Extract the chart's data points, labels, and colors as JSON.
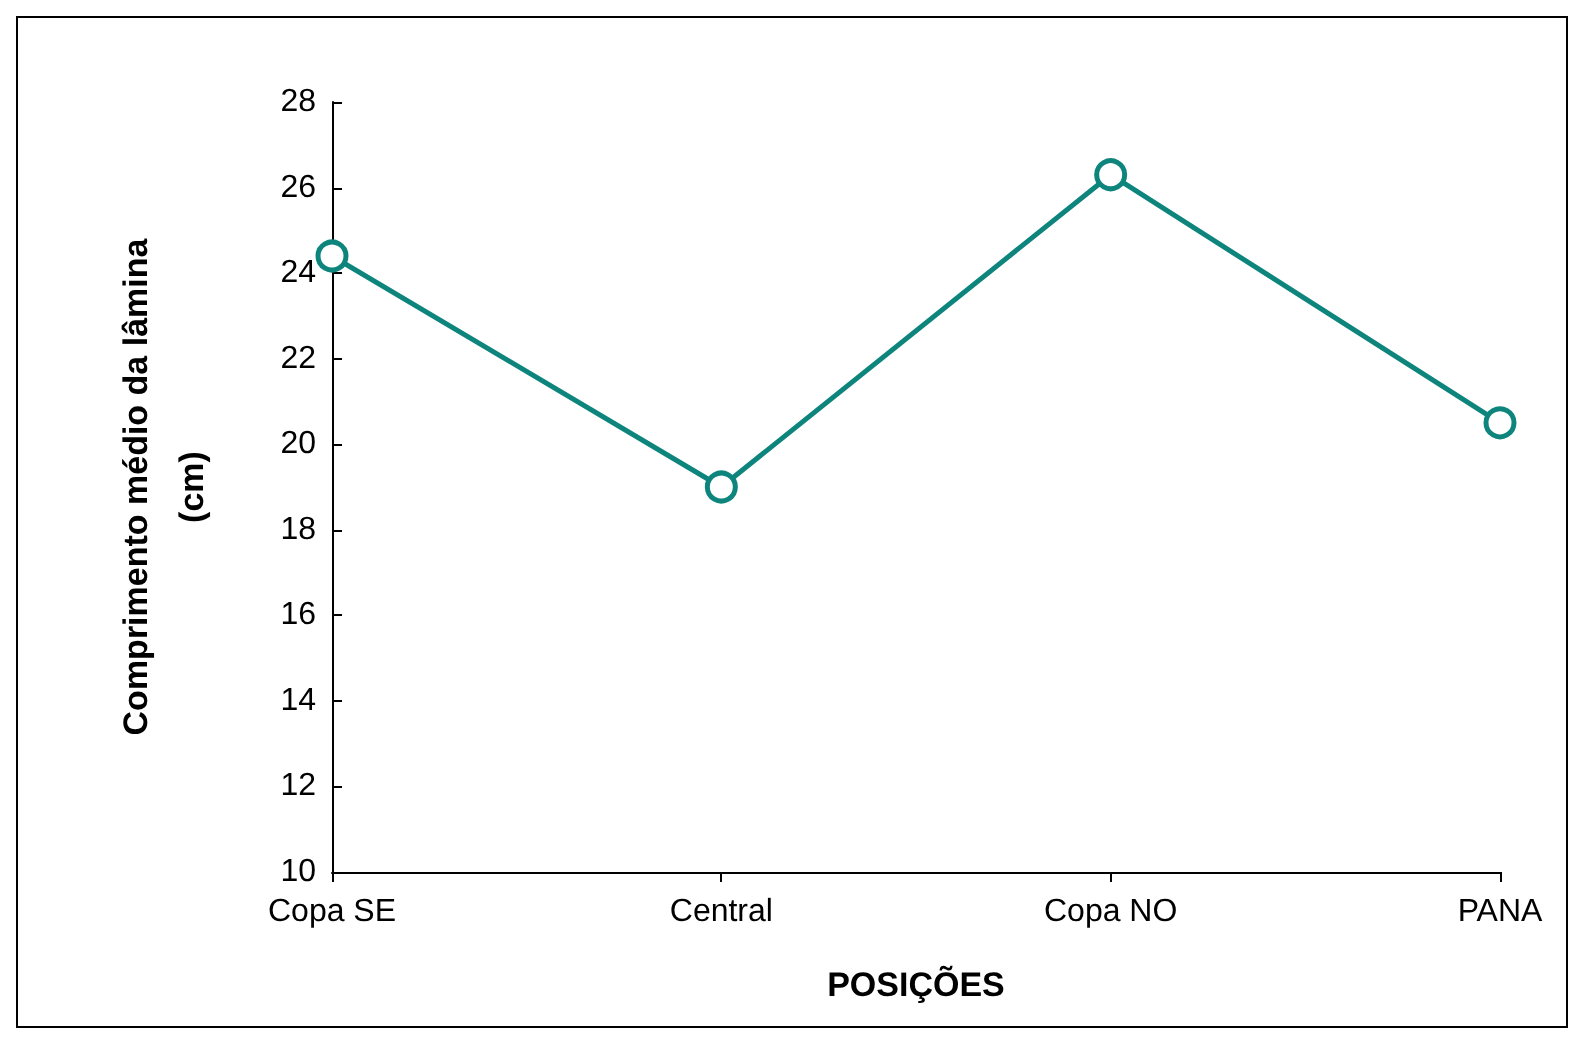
{
  "chart_data": {
    "type": "line",
    "xlabel": "POSIÇÕES",
    "ylabel": "Comprimento médio da lâmina\n(cm)",
    "categories": [
      "Copa SE",
      "Central",
      "Copa NO",
      "PANA"
    ],
    "series": [
      {
        "color": "#0e857c",
        "values": [
          24.4,
          19.0,
          26.3,
          20.5
        ]
      }
    ],
    "ylim": [
      10,
      28
    ],
    "yticks": [
      10,
      12,
      14,
      16,
      18,
      20,
      22,
      24,
      26,
      28
    ],
    "grid": false,
    "marker": "circle",
    "line_style": "solid"
  }
}
